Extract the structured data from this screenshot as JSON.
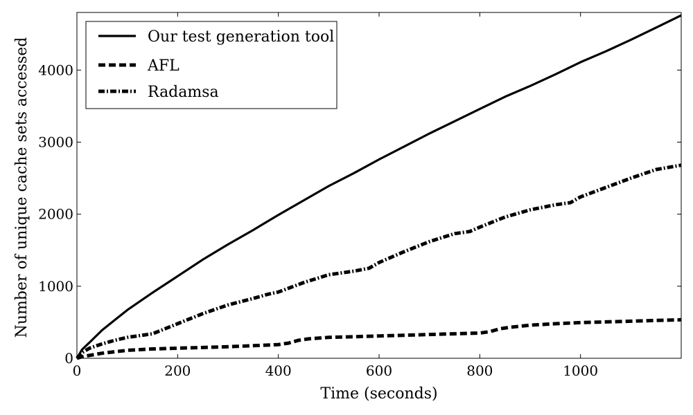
{
  "chart_data": {
    "type": "line",
    "title": "",
    "xlabel": "Time (seconds)",
    "ylabel": "Number of unique cache sets accessed",
    "xlim": [
      0,
      1200
    ],
    "ylim": [
      0,
      4800
    ],
    "xticks": [
      0,
      200,
      400,
      600,
      800,
      1000
    ],
    "yticks": [
      0,
      1000,
      2000,
      3000,
      4000
    ],
    "xtick_labels": [
      "0",
      "200",
      "400",
      "600",
      "800",
      "1000"
    ],
    "ytick_labels": [
      "0",
      "1000",
      "2000",
      "3000",
      "4000"
    ],
    "grid": false,
    "legend_position": "top-left",
    "series": [
      {
        "name": "Our test generation tool",
        "style": "solid",
        "color": "#000000",
        "x": [
          0,
          10,
          25,
          50,
          75,
          100,
          150,
          200,
          250,
          300,
          350,
          400,
          450,
          500,
          550,
          600,
          650,
          700,
          750,
          800,
          850,
          900,
          950,
          1000,
          1050,
          1100,
          1150,
          1200
        ],
        "y": [
          0,
          120,
          220,
          390,
          530,
          670,
          910,
          1140,
          1370,
          1580,
          1780,
          1990,
          2190,
          2390,
          2570,
          2760,
          2940,
          3120,
          3290,
          3460,
          3630,
          3780,
          3940,
          4110,
          4260,
          4420,
          4590,
          4760
        ]
      },
      {
        "name": "AFL",
        "style": "dashed",
        "color": "#000000",
        "x": [
          0,
          10,
          25,
          50,
          100,
          150,
          200,
          250,
          300,
          350,
          400,
          420,
          440,
          460,
          500,
          550,
          600,
          650,
          700,
          750,
          800,
          820,
          840,
          860,
          900,
          950,
          1000,
          1050,
          1100,
          1150,
          1200
        ],
        "y": [
          0,
          20,
          40,
          70,
          110,
          130,
          140,
          150,
          160,
          175,
          190,
          210,
          250,
          270,
          290,
          300,
          310,
          320,
          330,
          340,
          350,
          370,
          410,
          430,
          460,
          480,
          495,
          505,
          515,
          525,
          535
        ]
      },
      {
        "name": "Radamsa",
        "style": "dash-dot",
        "color": "#000000",
        "x": [
          0,
          10,
          25,
          50,
          75,
          100,
          150,
          200,
          250,
          300,
          350,
          380,
          400,
          450,
          500,
          550,
          580,
          600,
          650,
          700,
          750,
          780,
          800,
          850,
          900,
          950,
          980,
          1000,
          1050,
          1100,
          1150,
          1200
        ],
        "y": [
          0,
          80,
          140,
          200,
          250,
          290,
          340,
          480,
          620,
          740,
          830,
          890,
          920,
          1050,
          1160,
          1210,
          1250,
          1330,
          1480,
          1620,
          1730,
          1760,
          1820,
          1960,
          2060,
          2130,
          2160,
          2240,
          2370,
          2500,
          2620,
          2680
        ]
      }
    ]
  }
}
